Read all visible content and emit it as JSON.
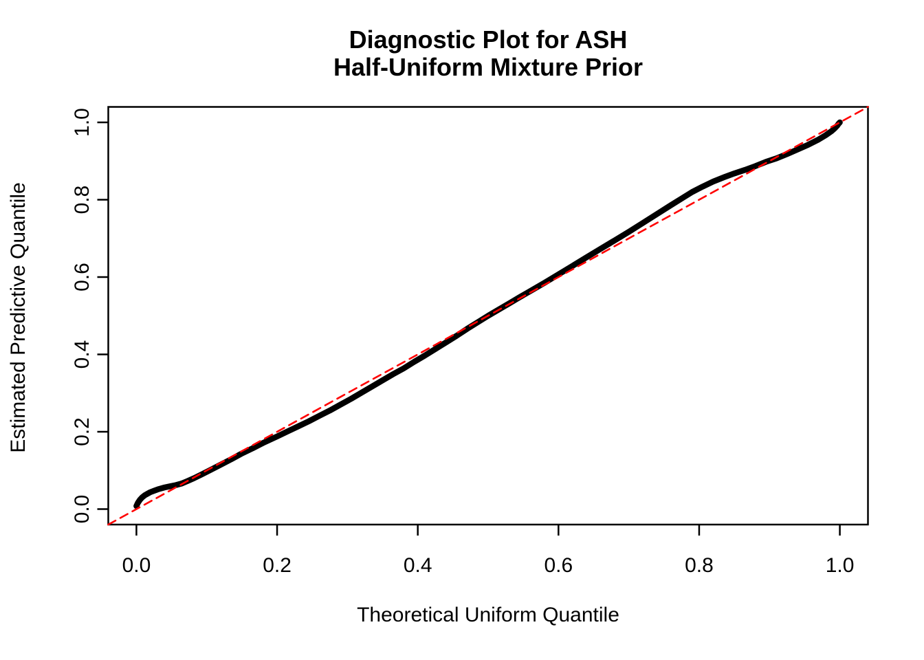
{
  "figure": {
    "title_line1": "Diagnostic Plot for ASH",
    "title_line2": "Half-Uniform Mixture Prior",
    "x_axis_label": "Theoretical Uniform Quantile",
    "y_axis_label": "Estimated Predictive Quantile"
  },
  "colors": {
    "background": "#FFFFFF",
    "axis": "#000000",
    "curve": "#000000",
    "reference_line": "#FF0000",
    "text": "#000000"
  },
  "chart_data": {
    "type": "line",
    "title": "Diagnostic Plot for ASH\nHalf-Uniform Mixture Prior",
    "xlabel": "Theoretical Uniform Quantile",
    "ylabel": "Estimated Predictive Quantile",
    "xlim": [
      -0.04,
      1.04
    ],
    "ylim": [
      -0.04,
      1.04
    ],
    "grid": false,
    "legend": "none",
    "x_ticks": {
      "values": [
        0.0,
        0.2,
        0.4,
        0.6,
        0.8,
        1.0
      ],
      "labels": [
        "0.0",
        "0.2",
        "0.4",
        "0.6",
        "0.8",
        "1.0"
      ]
    },
    "y_ticks": {
      "values": [
        0.0,
        0.2,
        0.4,
        0.6,
        0.8,
        1.0
      ],
      "labels": [
        "0.0",
        "0.2",
        "0.4",
        "0.6",
        "0.8",
        "1.0"
      ]
    },
    "series": [
      {
        "name": "estimated-predictive-quantile-curve",
        "style": "thick-solid",
        "color": "#000000",
        "stroke_width": 8.5,
        "points": [
          [
            0.0,
            0.008
          ],
          [
            0.002,
            0.016
          ],
          [
            0.005,
            0.024
          ],
          [
            0.008,
            0.03
          ],
          [
            0.012,
            0.036
          ],
          [
            0.016,
            0.04
          ],
          [
            0.02,
            0.044
          ],
          [
            0.026,
            0.048
          ],
          [
            0.032,
            0.052
          ],
          [
            0.04,
            0.056
          ],
          [
            0.048,
            0.059
          ],
          [
            0.056,
            0.062
          ],
          [
            0.064,
            0.066
          ],
          [
            0.072,
            0.072
          ],
          [
            0.082,
            0.08
          ],
          [
            0.092,
            0.089
          ],
          [
            0.105,
            0.101
          ],
          [
            0.12,
            0.115
          ],
          [
            0.135,
            0.129
          ],
          [
            0.15,
            0.144
          ],
          [
            0.165,
            0.157
          ],
          [
            0.18,
            0.171
          ],
          [
            0.2,
            0.188
          ],
          [
            0.215,
            0.201
          ],
          [
            0.23,
            0.214
          ],
          [
            0.245,
            0.227
          ],
          [
            0.26,
            0.241
          ],
          [
            0.275,
            0.255
          ],
          [
            0.29,
            0.27
          ],
          [
            0.305,
            0.285
          ],
          [
            0.32,
            0.301
          ],
          [
            0.335,
            0.317
          ],
          [
            0.35,
            0.333
          ],
          [
            0.365,
            0.349
          ],
          [
            0.38,
            0.364
          ],
          [
            0.395,
            0.381
          ],
          [
            0.41,
            0.397
          ],
          [
            0.425,
            0.414
          ],
          [
            0.44,
            0.431
          ],
          [
            0.455,
            0.448
          ],
          [
            0.47,
            0.466
          ],
          [
            0.485,
            0.483
          ],
          [
            0.5,
            0.5
          ],
          [
            0.515,
            0.516
          ],
          [
            0.53,
            0.532
          ],
          [
            0.545,
            0.548
          ],
          [
            0.56,
            0.564
          ],
          [
            0.58,
            0.585
          ],
          [
            0.6,
            0.607
          ],
          [
            0.62,
            0.629
          ],
          [
            0.64,
            0.651
          ],
          [
            0.66,
            0.673
          ],
          [
            0.68,
            0.695
          ],
          [
            0.7,
            0.717
          ],
          [
            0.72,
            0.74
          ],
          [
            0.74,
            0.763
          ],
          [
            0.76,
            0.786
          ],
          [
            0.775,
            0.803
          ],
          [
            0.79,
            0.82
          ],
          [
            0.805,
            0.834
          ],
          [
            0.82,
            0.847
          ],
          [
            0.835,
            0.858
          ],
          [
            0.85,
            0.868
          ],
          [
            0.865,
            0.877
          ],
          [
            0.88,
            0.887
          ],
          [
            0.895,
            0.898
          ],
          [
            0.91,
            0.907
          ],
          [
            0.925,
            0.918
          ],
          [
            0.94,
            0.93
          ],
          [
            0.955,
            0.942
          ],
          [
            0.97,
            0.956
          ],
          [
            0.98,
            0.967
          ],
          [
            0.988,
            0.977
          ],
          [
            0.993,
            0.985
          ],
          [
            0.996,
            0.991
          ],
          [
            0.998,
            0.996
          ],
          [
            1.0,
            1.0
          ]
        ]
      },
      {
        "name": "identity-reference-line",
        "style": "dashed",
        "color": "#FF0000",
        "stroke_width": 2.6,
        "dash": [
          12,
          8
        ],
        "points": [
          [
            -0.04,
            -0.04
          ],
          [
            1.04,
            1.04
          ]
        ]
      }
    ]
  }
}
